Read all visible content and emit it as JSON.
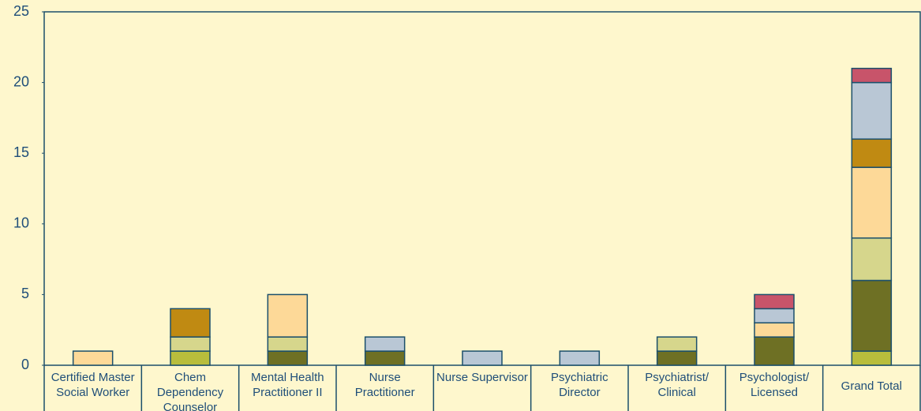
{
  "chart_data": {
    "type": "stacked_bar",
    "categories": [
      "Certified Master Social Worker",
      "Chem Dependency Counselor",
      "Mental Health Practitioner II",
      "Nurse Practitioner",
      "Nurse Supervisor",
      "Psychiatric Director",
      "Psychiatrist/ Clinical",
      "Psychologist/ Licensed",
      "Grand Total"
    ],
    "series": [
      {
        "color": "#b8bd3c",
        "values": [
          0,
          1,
          0,
          0,
          0,
          0,
          0,
          0,
          1
        ]
      },
      {
        "color": "#6e7024",
        "values": [
          0,
          0,
          1,
          1,
          0,
          0,
          1,
          2,
          5
        ]
      },
      {
        "color": "#d6d68c",
        "values": [
          0,
          1,
          1,
          0,
          0,
          0,
          1,
          0,
          3
        ]
      },
      {
        "color": "#fdd998",
        "values": [
          1,
          0,
          3,
          0,
          0,
          0,
          0,
          1,
          5
        ]
      },
      {
        "color": "#c08a12",
        "values": [
          0,
          2,
          0,
          0,
          0,
          0,
          0,
          0,
          2
        ]
      },
      {
        "color": "#b9c7d5",
        "values": [
          0,
          0,
          0,
          1,
          1,
          1,
          0,
          1,
          4
        ]
      },
      {
        "color": "#c8546a",
        "values": [
          0,
          0,
          0,
          0,
          0,
          0,
          0,
          1,
          1
        ]
      }
    ],
    "ylim": [
      0,
      25
    ],
    "yticks": [
      0,
      5,
      10,
      15,
      20,
      25
    ],
    "grid": false
  }
}
